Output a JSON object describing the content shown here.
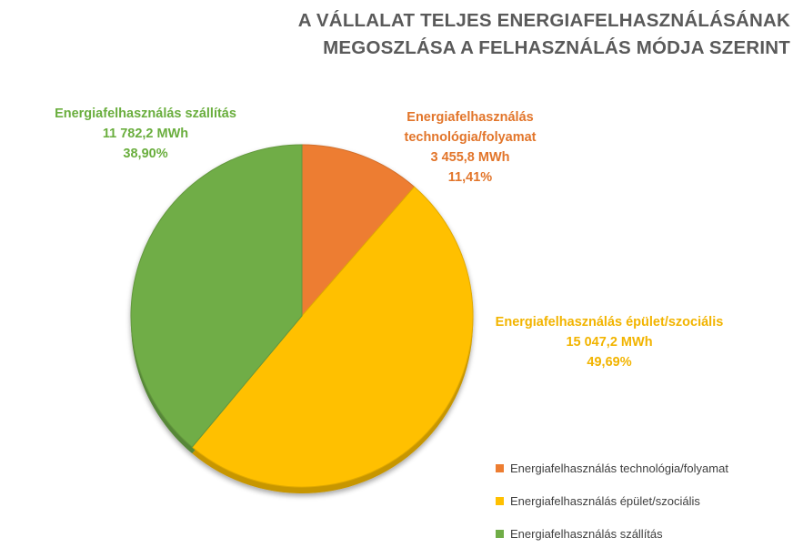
{
  "chart_data": {
    "type": "pie",
    "title_lines": [
      "A VÁLLALAT TELJES ENERGIAFELHASZNÁLÁSÁNAK",
      "MEGOSZLÁSA A FELHASZNÁLÁS MÓDJA SZERINT"
    ],
    "unit": "MWh",
    "legend_position": "bottom-right",
    "slices": [
      {
        "name": "Energiafelhasználás technológia/folyamat",
        "label_lines": [
          "Energiafelhasználás",
          "technológia/folyamat"
        ],
        "value": 3455.8,
        "value_label": "3 455,8 MWh",
        "percent": 11.41,
        "percent_label": "11,41%",
        "color": "#ED7D31",
        "label_color": "#E2752A"
      },
      {
        "name": "Energiafelhasználás épület/szociális",
        "label_lines": [
          "Energiafelhasználás épület/szociális"
        ],
        "value": 15047.2,
        "value_label": "15 047,2 MWh",
        "percent": 49.69,
        "percent_label": "49,69%",
        "color": "#FFC000",
        "label_color": "#F2B400"
      },
      {
        "name": "Energiafelhasználás szállítás",
        "label_lines": [
          "Energiafelhasználás szállítás"
        ],
        "value": 11782.2,
        "value_label": "11 782,2 MWh",
        "percent": 38.9,
        "percent_label": "38,90%",
        "color": "#70AD47",
        "label_color": "#6AAE3E"
      }
    ]
  }
}
